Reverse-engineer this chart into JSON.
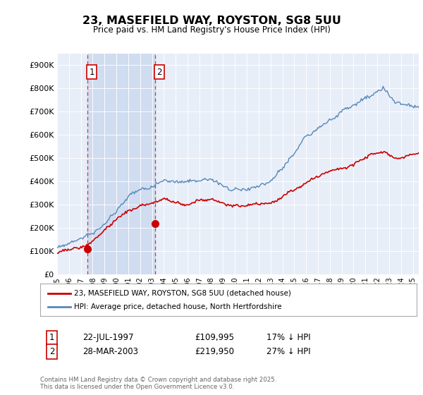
{
  "title": "23, MASEFIELD WAY, ROYSTON, SG8 5UU",
  "subtitle": "Price paid vs. HM Land Registry's House Price Index (HPI)",
  "ylim": [
    0,
    950000
  ],
  "yticks": [
    0,
    100000,
    200000,
    300000,
    400000,
    500000,
    600000,
    700000,
    800000,
    900000
  ],
  "xlim_start": 1995.0,
  "xlim_end": 2025.5,
  "purchase1_date": 1997.55,
  "purchase1_price": 109995,
  "purchase1_label": "1",
  "purchase2_date": 2003.24,
  "purchase2_price": 219950,
  "purchase2_label": "2",
  "legend_line1": "23, MASEFIELD WAY, ROYSTON, SG8 5UU (detached house)",
  "legend_line2": "HPI: Average price, detached house, North Hertfordshire",
  "table_row1_num": "1",
  "table_row1_date": "22-JUL-1997",
  "table_row1_price": "£109,995",
  "table_row1_hpi": "17% ↓ HPI",
  "table_row2_num": "2",
  "table_row2_date": "28-MAR-2003",
  "table_row2_price": "£219,950",
  "table_row2_hpi": "27% ↓ HPI",
  "footer": "Contains HM Land Registry data © Crown copyright and database right 2025.\nThis data is licensed under the Open Government Licence v3.0.",
  "red_line_color": "#cc0000",
  "blue_line_color": "#5588bb",
  "plot_bg_color": "#e8eef8",
  "span_bg_color": "#d0dcf0",
  "background_color": "#ffffff"
}
